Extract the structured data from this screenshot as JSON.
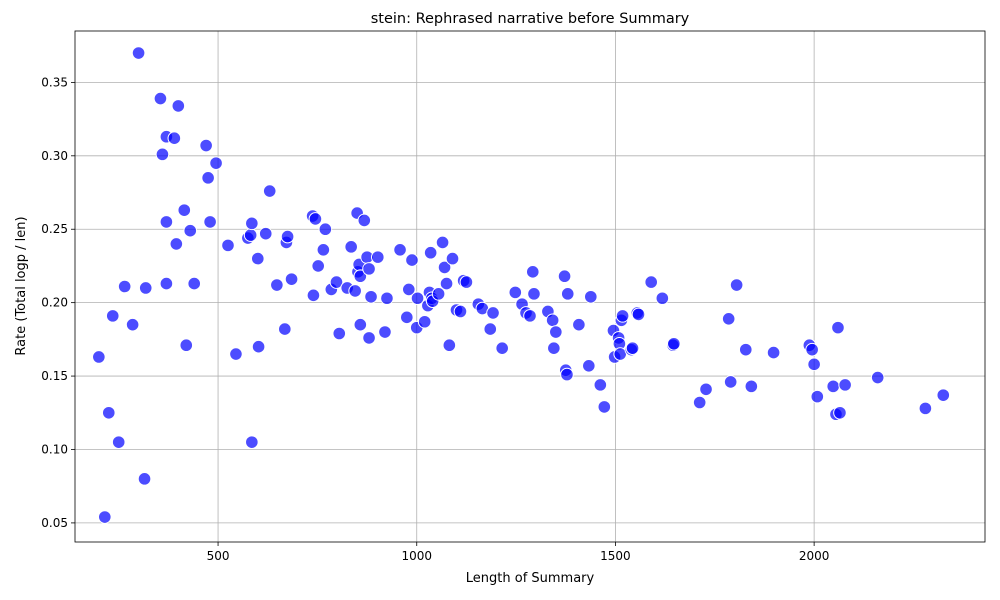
{
  "chart_data": {
    "type": "scatter",
    "title": "stein: Rephrased narrative before Summary",
    "xlabel": "Length of Summary",
    "ylabel": "Rate (Total logp / len)",
    "xlim": [
      140,
      2430
    ],
    "ylim": [
      0.037,
      0.385
    ],
    "xticks": [
      500,
      1000,
      1500,
      2000
    ],
    "yticks": [
      0.05,
      0.1,
      0.15,
      0.2,
      0.25,
      0.3,
      0.35
    ],
    "ytick_labels": [
      "0.05",
      "0.10",
      "0.15",
      "0.20",
      "0.25",
      "0.30",
      "0.35"
    ],
    "grid": true,
    "marker_color": "#0000ff",
    "marker_edge": "#ffffff",
    "series": [
      {
        "points": [
          [
            200,
            0.163
          ],
          [
            215,
            0.054
          ],
          [
            225,
            0.125
          ],
          [
            235,
            0.191
          ],
          [
            250,
            0.105
          ],
          [
            265,
            0.211
          ],
          [
            285,
            0.185
          ],
          [
            300,
            0.37
          ],
          [
            315,
            0.08
          ],
          [
            318,
            0.21
          ],
          [
            355,
            0.339
          ],
          [
            360,
            0.301
          ],
          [
            370,
            0.255
          ],
          [
            370,
            0.213
          ],
          [
            370,
            0.313
          ],
          [
            390,
            0.312
          ],
          [
            395,
            0.24
          ],
          [
            400,
            0.334
          ],
          [
            415,
            0.263
          ],
          [
            420,
            0.171
          ],
          [
            430,
            0.249
          ],
          [
            440,
            0.213
          ],
          [
            470,
            0.307
          ],
          [
            475,
            0.285
          ],
          [
            480,
            0.255
          ],
          [
            495,
            0.295
          ],
          [
            525,
            0.239
          ],
          [
            545,
            0.165
          ],
          [
            575,
            0.244
          ],
          [
            582,
            0.246
          ],
          [
            585,
            0.105
          ],
          [
            585,
            0.254
          ],
          [
            600,
            0.23
          ],
          [
            602,
            0.17
          ],
          [
            620,
            0.247
          ],
          [
            630,
            0.276
          ],
          [
            648,
            0.212
          ],
          [
            668,
            0.182
          ],
          [
            672,
            0.241
          ],
          [
            675,
            0.245
          ],
          [
            685,
            0.216
          ],
          [
            738,
            0.259
          ],
          [
            740,
            0.205
          ],
          [
            745,
            0.257
          ],
          [
            752,
            0.225
          ],
          [
            765,
            0.236
          ],
          [
            770,
            0.25
          ],
          [
            785,
            0.209
          ],
          [
            798,
            0.214
          ],
          [
            805,
            0.179
          ],
          [
            825,
            0.21
          ],
          [
            835,
            0.238
          ],
          [
            845,
            0.208
          ],
          [
            850,
            0.261
          ],
          [
            852,
            0.221
          ],
          [
            855,
            0.226
          ],
          [
            858,
            0.218
          ],
          [
            858,
            0.185
          ],
          [
            868,
            0.256
          ],
          [
            875,
            0.231
          ],
          [
            880,
            0.223
          ],
          [
            880,
            0.176
          ],
          [
            885,
            0.204
          ],
          [
            902,
            0.231
          ],
          [
            920,
            0.18
          ],
          [
            925,
            0.203
          ],
          [
            958,
            0.236
          ],
          [
            975,
            0.19
          ],
          [
            980,
            0.209
          ],
          [
            988,
            0.229
          ],
          [
            1000,
            0.183
          ],
          [
            1002,
            0.203
          ],
          [
            1020,
            0.187
          ],
          [
            1028,
            0.198
          ],
          [
            1032,
            0.207
          ],
          [
            1035,
            0.234
          ],
          [
            1038,
            0.203
          ],
          [
            1040,
            0.201
          ],
          [
            1055,
            0.206
          ],
          [
            1065,
            0.241
          ],
          [
            1070,
            0.224
          ],
          [
            1075,
            0.213
          ],
          [
            1082,
            0.171
          ],
          [
            1090,
            0.23
          ],
          [
            1100,
            0.195
          ],
          [
            1110,
            0.194
          ],
          [
            1118,
            0.215
          ],
          [
            1125,
            0.214
          ],
          [
            1155,
            0.199
          ],
          [
            1165,
            0.196
          ],
          [
            1185,
            0.182
          ],
          [
            1192,
            0.193
          ],
          [
            1215,
            0.169
          ],
          [
            1248,
            0.207
          ],
          [
            1265,
            0.199
          ],
          [
            1275,
            0.193
          ],
          [
            1285,
            0.191
          ],
          [
            1292,
            0.221
          ],
          [
            1295,
            0.206
          ],
          [
            1330,
            0.194
          ],
          [
            1342,
            0.188
          ],
          [
            1345,
            0.169
          ],
          [
            1350,
            0.18
          ],
          [
            1372,
            0.218
          ],
          [
            1375,
            0.154
          ],
          [
            1378,
            0.151
          ],
          [
            1380,
            0.206
          ],
          [
            1408,
            0.185
          ],
          [
            1433,
            0.157
          ],
          [
            1438,
            0.204
          ],
          [
            1462,
            0.144
          ],
          [
            1472,
            0.129
          ],
          [
            1495,
            0.181
          ],
          [
            1498,
            0.163
          ],
          [
            1508,
            0.176
          ],
          [
            1510,
            0.172
          ],
          [
            1512,
            0.165
          ],
          [
            1515,
            0.188
          ],
          [
            1518,
            0.191
          ],
          [
            1540,
            0.168
          ],
          [
            1543,
            0.169
          ],
          [
            1555,
            0.193
          ],
          [
            1558,
            0.192
          ],
          [
            1590,
            0.214
          ],
          [
            1618,
            0.203
          ],
          [
            1645,
            0.171
          ],
          [
            1647,
            0.172
          ],
          [
            1712,
            0.132
          ],
          [
            1728,
            0.141
          ],
          [
            1785,
            0.189
          ],
          [
            1790,
            0.146
          ],
          [
            1805,
            0.212
          ],
          [
            1828,
            0.168
          ],
          [
            1842,
            0.143
          ],
          [
            1898,
            0.166
          ],
          [
            1988,
            0.171
          ],
          [
            1995,
            0.168
          ],
          [
            2000,
            0.158
          ],
          [
            2008,
            0.136
          ],
          [
            2048,
            0.143
          ],
          [
            2055,
            0.124
          ],
          [
            2060,
            0.183
          ],
          [
            2065,
            0.125
          ],
          [
            2078,
            0.144
          ],
          [
            2160,
            0.149
          ],
          [
            2280,
            0.128
          ],
          [
            2325,
            0.137
          ]
        ]
      }
    ]
  }
}
